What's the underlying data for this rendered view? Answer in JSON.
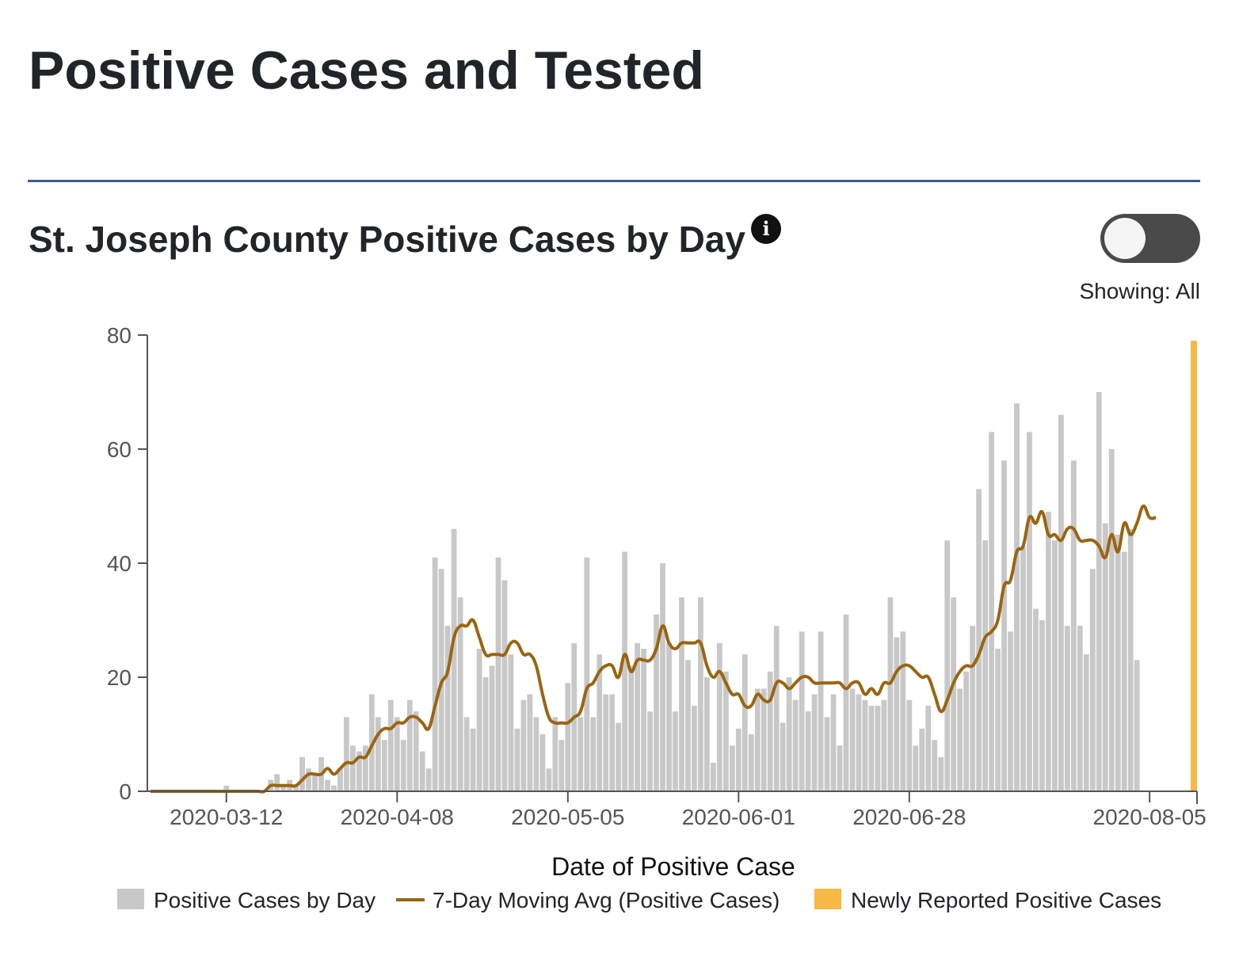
{
  "page_title": "Positive Cases and Tested",
  "chart_title": "St. Joseph County Positive Cases by Day",
  "info_icon_label": "i",
  "toggle": {
    "status_text": "Showing: All",
    "state": "off"
  },
  "colors": {
    "bars": "#c8c8c8",
    "line": "#9a6510",
    "new": "#f7b844",
    "divider": "#3b5998"
  },
  "chart_data": {
    "type": "bar",
    "xlabel": "Date of Positive Case",
    "ylabel": "",
    "ylim": [
      0,
      80
    ],
    "y_ticks": [
      0,
      20,
      40,
      60,
      80
    ],
    "x_ticks": [
      "2020-03-12",
      "2020-04-08",
      "2020-05-05",
      "2020-06-01",
      "2020-06-28",
      "2020-08-05"
    ],
    "x_start": "2020-02-29",
    "x_end": "2020-08-12",
    "legend": [
      "Positive Cases by Day",
      "7-Day Moving Avg (Positive Cases)",
      "Newly Reported Positive Cases"
    ],
    "legend_position": "bottom",
    "series": [
      {
        "name": "Positive Cases by Day",
        "values": [
          0,
          0,
          0,
          0,
          0,
          0,
          0,
          0,
          0,
          0,
          0,
          0,
          1,
          0,
          0,
          0,
          0,
          0,
          0,
          2,
          3,
          1,
          2,
          1,
          6,
          4,
          3,
          6,
          2,
          1,
          4,
          13,
          8,
          7,
          8,
          17,
          13,
          9,
          16,
          13,
          9,
          16,
          14,
          7,
          4,
          41,
          39,
          29,
          46,
          34,
          13,
          11,
          25,
          20,
          22,
          41,
          37,
          24,
          11,
          16,
          17,
          13,
          10,
          4,
          13,
          9,
          19,
          26,
          13,
          41,
          13,
          24,
          17,
          17,
          12,
          42,
          22,
          26,
          25,
          14,
          31,
          40,
          26,
          14,
          34,
          23,
          15,
          34,
          20,
          5,
          26,
          21,
          8,
          11,
          24,
          10,
          18,
          18,
          21,
          29,
          12,
          20,
          16,
          28,
          14,
          17,
          28,
          13,
          17,
          8,
          31,
          18,
          17,
          16,
          15,
          15,
          16,
          34,
          27,
          28,
          16,
          8,
          11,
          15,
          9,
          6,
          44,
          34,
          18,
          21,
          29,
          53,
          44,
          63,
          25,
          58,
          28,
          68,
          43,
          63,
          32,
          30,
          49,
          44,
          66,
          29,
          58,
          29,
          24,
          39,
          70,
          47,
          60,
          45,
          42,
          46,
          23
        ]
      },
      {
        "name": "7-Day Moving Avg (Positive Cases)",
        "values": [
          0,
          0,
          0,
          0,
          0,
          0,
          0,
          0,
          0,
          0,
          0,
          0,
          0,
          0,
          0,
          0,
          0,
          0,
          0,
          1,
          1,
          1,
          1,
          1,
          2,
          3,
          3,
          3,
          4,
          3,
          4,
          5,
          5,
          6,
          6,
          8,
          10,
          11,
          11,
          12,
          12,
          13,
          13,
          12,
          11,
          15,
          19,
          21,
          27,
          29,
          29,
          30,
          27,
          24,
          24,
          24,
          24,
          26,
          26,
          24,
          24,
          22,
          17,
          13,
          12,
          12,
          12,
          13,
          14,
          18,
          19,
          21,
          22,
          22,
          20,
          24,
          21,
          23,
          23,
          23,
          25,
          29,
          26,
          25,
          26,
          26,
          26,
          26,
          22,
          20,
          21,
          19,
          17,
          17,
          15,
          15,
          17,
          16,
          16,
          19,
          19,
          18,
          19,
          20,
          20,
          19,
          19,
          19,
          19,
          19,
          18,
          19,
          19,
          17,
          18,
          17,
          19,
          19,
          21,
          22,
          22,
          21,
          20,
          20,
          17,
          14,
          16,
          19,
          21,
          22,
          22,
          24,
          27,
          28,
          30,
          36,
          37,
          42,
          43,
          48,
          47,
          49,
          45,
          45,
          44,
          46,
          46,
          44,
          44,
          44,
          43,
          41,
          45,
          42,
          47,
          45,
          47,
          50,
          48,
          48
        ]
      },
      {
        "name": "Newly Reported Positive Cases",
        "x": "2020-08-12",
        "values": [
          79
        ]
      }
    ]
  }
}
